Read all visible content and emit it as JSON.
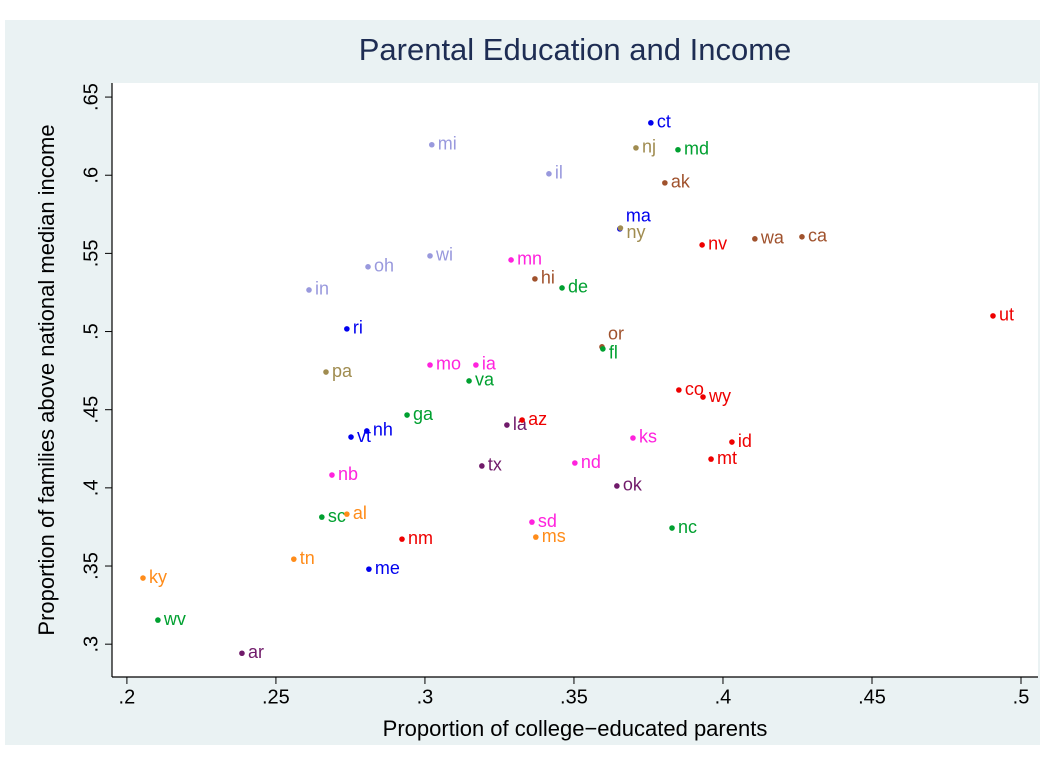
{
  "chart_data": {
    "type": "scatter",
    "title": "Parental Education and Income",
    "x_label": "Proportion of college−educated parents",
    "y_label": "Proportion of families above national median income",
    "xlim": [
      0.195,
      0.5057
    ],
    "ylim": [
      0.279,
      0.659
    ],
    "xticks": [
      {
        "value": 0.2,
        "label": ".2"
      },
      {
        "value": 0.25,
        "label": ".25"
      },
      {
        "value": 0.3,
        "label": ".3"
      },
      {
        "value": 0.35,
        "label": ".35"
      },
      {
        "value": 0.4,
        "label": ".4"
      },
      {
        "value": 0.45,
        "label": ".45"
      },
      {
        "value": 0.5,
        "label": ".5"
      }
    ],
    "yticks": [
      {
        "value": 0.3,
        "label": ".3"
      },
      {
        "value": 0.35,
        "label": ".35"
      },
      {
        "value": 0.4,
        "label": ".4"
      },
      {
        "value": 0.45,
        "label": ".45"
      },
      {
        "value": 0.5,
        "label": ".5"
      },
      {
        "value": 0.55,
        "label": ".55"
      },
      {
        "value": 0.6,
        "label": ".6"
      },
      {
        "value": 0.65,
        "label": ".65"
      }
    ],
    "series": [
      {
        "color": "#0000ee",
        "labels": [
          "ct",
          "ma",
          "ri",
          "nh",
          "vt",
          "me"
        ],
        "x": [
          0.3758,
          0.3654,
          0.2738,
          0.2805,
          0.2752,
          0.2812
        ],
        "values": [
          0.6335,
          0.5657,
          0.5017,
          0.4364,
          0.4325,
          0.348
        ]
      },
      {
        "color": "#a08c50",
        "labels": [
          "nj",
          "ny",
          "pa"
        ],
        "x": [
          0.3708,
          0.3656,
          0.2668
        ],
        "values": [
          0.6175,
          0.5662,
          0.4741
        ]
      },
      {
        "color": "#a0522d",
        "labels": [
          "ak",
          "wa",
          "ca",
          "hi",
          "or"
        ],
        "x": [
          0.3805,
          0.4107,
          0.4265,
          0.3369,
          0.3594
        ],
        "values": [
          0.5951,
          0.5593,
          0.5606,
          0.5337,
          0.4902
        ]
      },
      {
        "color": "#00a030",
        "labels": [
          "md",
          "de",
          "fl",
          "va",
          "ga",
          "sc",
          "nc",
          "wv"
        ],
        "x": [
          0.3849,
          0.346,
          0.3597,
          0.3148,
          0.294,
          0.2654,
          0.3829,
          0.2104
        ],
        "values": [
          0.6163,
          0.5279,
          0.4889,
          0.4684,
          0.4466,
          0.3813,
          0.3743,
          0.3154
        ]
      },
      {
        "color": "#9999dd",
        "labels": [
          "mi",
          "il",
          "wi",
          "oh",
          "in"
        ],
        "x": [
          0.3023,
          0.3416,
          0.3017,
          0.2809,
          0.2611
        ],
        "values": [
          0.6195,
          0.6009,
          0.5484,
          0.5414,
          0.5266
        ]
      },
      {
        "color": "#ff22dd",
        "labels": [
          "mn",
          "mo",
          "ia",
          "ks",
          "nd",
          "nb",
          "sd"
        ],
        "x": [
          0.3289,
          0.3017,
          0.3171,
          0.3698,
          0.3503,
          0.2688,
          0.3359
        ],
        "values": [
          0.5458,
          0.4786,
          0.4786,
          0.4319,
          0.4159,
          0.4082,
          0.3781
        ]
      },
      {
        "color": "#ff8c1a",
        "labels": [
          "al",
          "ms",
          "tn",
          "ky"
        ],
        "x": [
          0.2738,
          0.3372,
          0.256,
          0.2054
        ],
        "values": [
          0.3832,
          0.3685,
          0.3544,
          0.3423
        ]
      },
      {
        "color": "#701a6a",
        "labels": [
          "la",
          "tx",
          "ok",
          "ar"
        ],
        "x": [
          0.3275,
          0.3191,
          0.3644,
          0.2386
        ],
        "values": [
          0.4402,
          0.414,
          0.4012,
          0.2942
        ]
      },
      {
        "color": "#ee0000",
        "labels": [
          "nv",
          "ut",
          "co",
          "wy",
          "az",
          "id",
          "mt",
          "nm"
        ],
        "x": [
          0.393,
          0.4906,
          0.3852,
          0.3933,
          0.3326,
          0.403,
          0.396,
          0.2923
        ],
        "values": [
          0.5554,
          0.51,
          0.4626,
          0.4581,
          0.4434,
          0.4293,
          0.4184,
          0.3672
        ]
      }
    ]
  }
}
